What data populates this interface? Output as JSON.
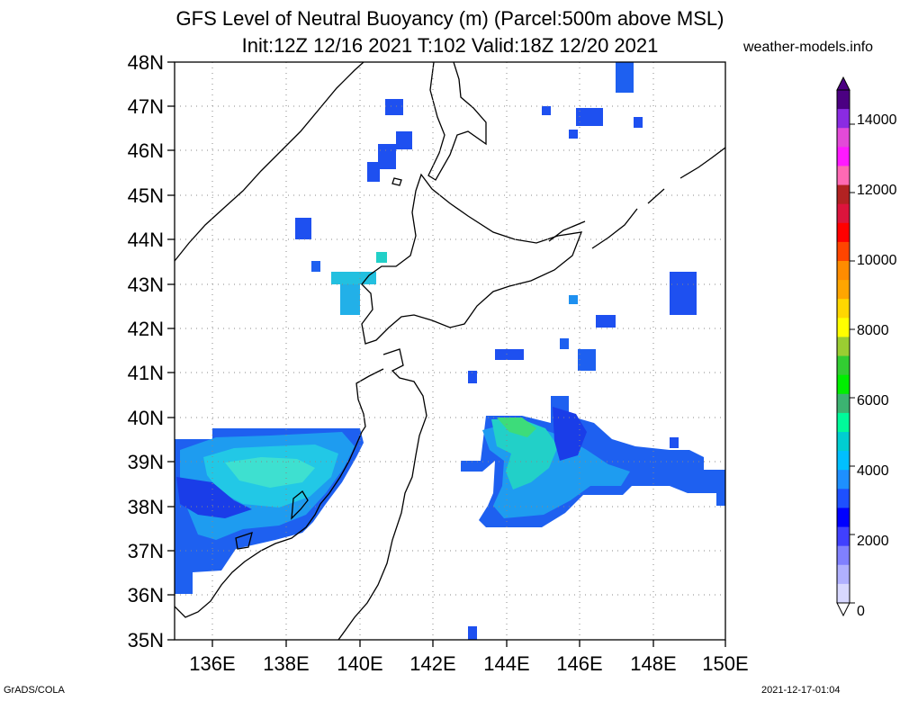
{
  "header": {
    "title_line1": "GFS Level of Neutral Buoyancy (m) (Parcel:500m above MSL)",
    "title_line2": "Init:12Z 12/16 2021 T:102 Valid:18Z 12/20 2021",
    "site": "weather-models.info"
  },
  "footer": {
    "left": "GrADS/COLA",
    "right": "2021-12-17-01:04"
  },
  "map": {
    "lat_labels": [
      "48N",
      "47N",
      "46N",
      "45N",
      "44N",
      "43N",
      "42N",
      "41N",
      "40N",
      "39N",
      "38N",
      "37N",
      "36N",
      "35N"
    ],
    "lon_labels": [
      "136E",
      "138E",
      "140E",
      "142E",
      "144E",
      "146E",
      "148E",
      "150E"
    ],
    "lat_range": [
      35,
      48
    ],
    "lon_range": [
      135,
      150
    ],
    "grid": "dotted"
  },
  "colorbar": {
    "labels": [
      "14000",
      "12000",
      "10000",
      "8000",
      "6000",
      "4000",
      "2000",
      "0"
    ],
    "range": [
      0,
      15000
    ],
    "colors": [
      "#4b0082",
      "#8a2be2",
      "#e34ad8",
      "#ff1aff",
      "#ff69b4",
      "#b22222",
      "#dc143c",
      "#ff0000",
      "#ff4500",
      "#ff8c00",
      "#ffa500",
      "#ffd700",
      "#ffff00",
      "#9acd32",
      "#32cd32",
      "#00ee00",
      "#3cb371",
      "#00fa9a",
      "#00ced1",
      "#00bfff",
      "#1e90ff",
      "#1e50ff",
      "#0000ff",
      "#4040ff",
      "#8080ff",
      "#b0b0ff",
      "#d8d8ff"
    ]
  }
}
